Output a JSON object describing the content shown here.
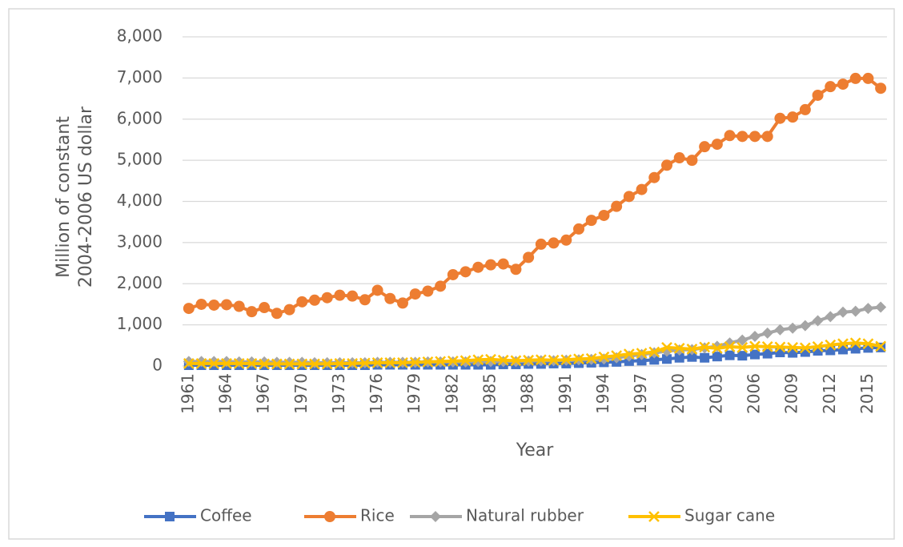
{
  "chart_data": {
    "type": "line",
    "ylabel": [
      "Million of constant",
      "2004-2006 US dollar"
    ],
    "xlabel": "Year",
    "categories": [
      "1961",
      null,
      null,
      "1964",
      null,
      null,
      "1967",
      null,
      null,
      "1970",
      null,
      null,
      "1973",
      null,
      null,
      "1976",
      null,
      null,
      "1979",
      null,
      null,
      "1982",
      null,
      null,
      "1985",
      null,
      null,
      "1988",
      null,
      null,
      "1991",
      null,
      null,
      "1994",
      null,
      null,
      "1997",
      null,
      null,
      "2000",
      null,
      null,
      "2003",
      null,
      null,
      "2006",
      null,
      null,
      "2009",
      null,
      null,
      "2012",
      null,
      null,
      "2015",
      null
    ],
    "series": [
      {
        "name": "Coffee",
        "color": "#4472c4",
        "marker": "square",
        "values": [
          20,
          20,
          20,
          20,
          20,
          20,
          20,
          20,
          20,
          20,
          20,
          20,
          20,
          20,
          20,
          30,
          30,
          30,
          30,
          30,
          30,
          30,
          30,
          30,
          30,
          40,
          40,
          50,
          50,
          60,
          60,
          70,
          80,
          90,
          100,
          120,
          130,
          150,
          170,
          200,
          220,
          200,
          230,
          260,
          250,
          280,
          300,
          330,
          320,
          340,
          370,
          380,
          400,
          420,
          440,
          450
        ]
      },
      {
        "name": "Rice",
        "color": "#ed7d31",
        "marker": "circle",
        "values": [
          1400,
          1500,
          1480,
          1490,
          1450,
          1320,
          1420,
          1280,
          1370,
          1560,
          1600,
          1660,
          1720,
          1700,
          1610,
          1840,
          1640,
          1530,
          1750,
          1820,
          1940,
          2220,
          2290,
          2400,
          2460,
          2480,
          2350,
          2640,
          2960,
          2990,
          3060,
          3330,
          3540,
          3660,
          3880,
          4120,
          4290,
          4580,
          4880,
          5060,
          5000,
          5330,
          5390,
          5600,
          5580,
          5580,
          5580,
          6020,
          6050,
          6230,
          6580,
          6790,
          6850,
          6990,
          6990,
          6750
        ]
      },
      {
        "name": "Natural rubber",
        "color": "#a5a5a5",
        "marker": "diamond",
        "values": [
          110,
          110,
          110,
          110,
          100,
          100,
          100,
          90,
          90,
          90,
          80,
          80,
          80,
          80,
          80,
          90,
          90,
          90,
          90,
          100,
          100,
          100,
          100,
          110,
          110,
          110,
          110,
          120,
          130,
          130,
          140,
          150,
          160,
          170,
          200,
          240,
          280,
          320,
          360,
          390,
          400,
          440,
          480,
          560,
          630,
          720,
          800,
          880,
          920,
          980,
          1100,
          1200,
          1310,
          1330,
          1400,
          1430
        ]
      },
      {
        "name": "Sugar cane",
        "color": "#ffc000",
        "marker": "x",
        "values": [
          60,
          60,
          60,
          60,
          60,
          60,
          50,
          50,
          50,
          50,
          50,
          50,
          60,
          60,
          70,
          80,
          80,
          80,
          90,
          100,
          110,
          120,
          130,
          150,
          160,
          140,
          130,
          140,
          150,
          140,
          150,
          170,
          180,
          220,
          250,
          290,
          310,
          340,
          450,
          430,
          410,
          460,
          430,
          470,
          450,
          480,
          470,
          460,
          450,
          440,
          470,
          510,
          540,
          560,
          540,
          480
        ]
      }
    ],
    "ylim": [
      0,
      8000
    ],
    "yticks": [
      0,
      {
        "value": 1000,
        "label": "1,000"
      },
      {
        "value": 2000,
        "label": "2,000"
      },
      {
        "value": 3000,
        "label": "3,000"
      },
      {
        "value": 4000,
        "label": "4,000"
      },
      {
        "value": 5000,
        "label": "5,000"
      },
      {
        "value": 6000,
        "label": "6,000"
      },
      {
        "value": 7000,
        "label": "7,000"
      },
      {
        "value": 8000,
        "label": "8,000"
      }
    ],
    "grid": true,
    "legend": "bottom"
  }
}
